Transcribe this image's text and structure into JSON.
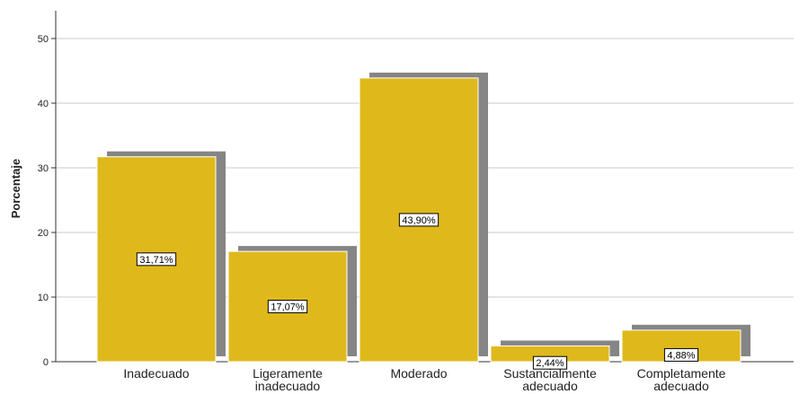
{
  "chart_data": {
    "type": "bar",
    "y_label": "Porcentaje",
    "categories": [
      "Inadecuado",
      "Ligeramente inadecuado",
      "Moderado",
      "Sustancialmente adecuado",
      "Completamente adecuado"
    ],
    "values": [
      31.71,
      17.07,
      43.9,
      2.44,
      4.88
    ],
    "value_labels": [
      "31,71%",
      "17,07%",
      "43,90%",
      "2,44%",
      "4,88%"
    ],
    "color": "#dfb91c",
    "shadow_color": "#858585",
    "ylim": [
      0,
      54.3
    ],
    "yticks": [
      0,
      10,
      20,
      30,
      40,
      50
    ],
    "grid": true
  }
}
